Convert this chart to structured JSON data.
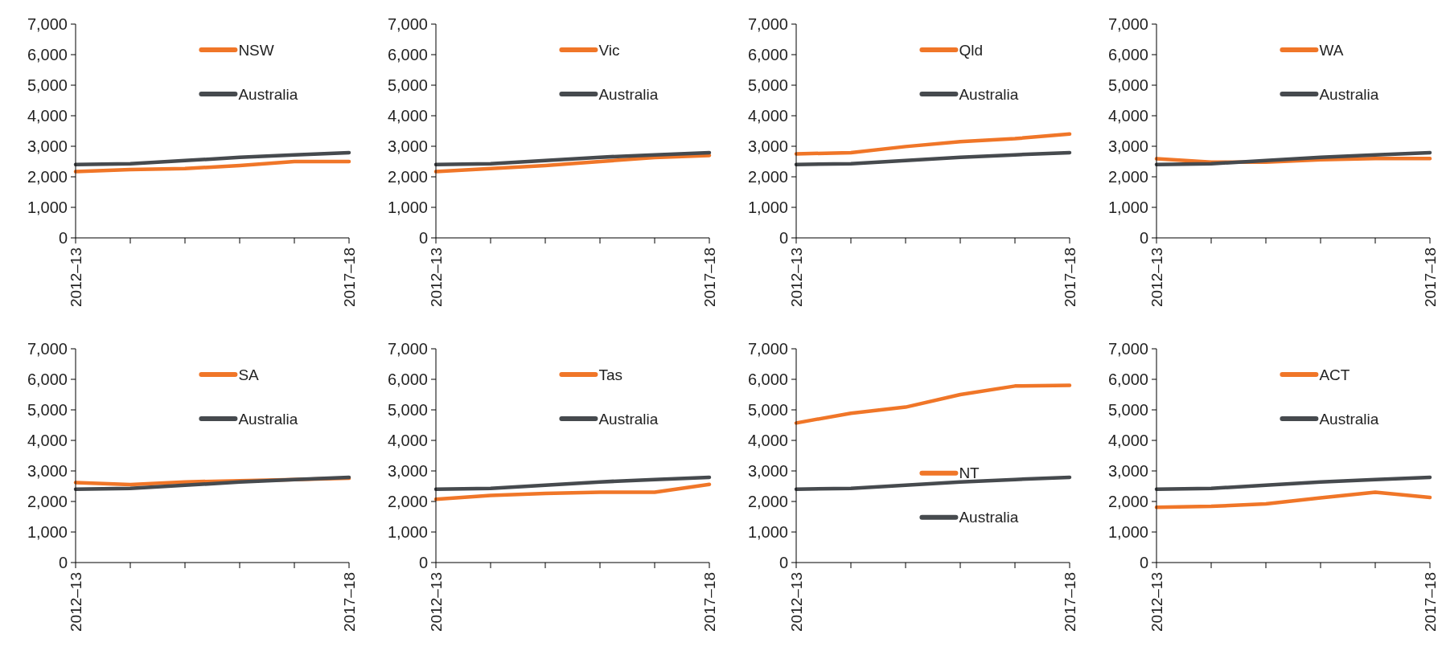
{
  "chart_data": [
    {
      "type": "line",
      "categories": [
        "2012–13",
        null,
        null,
        null,
        null,
        "2017–18"
      ],
      "ylim": [
        0,
        7000
      ],
      "yticks": [
        {
          "value": 0,
          "label": "0"
        },
        {
          "value": 1000,
          "label": "1,000"
        },
        {
          "value": 2000,
          "label": "2,000"
        },
        {
          "value": 3000,
          "label": "3,000"
        },
        {
          "value": 4000,
          "label": "4,000"
        },
        {
          "value": 5000,
          "label": "5,000"
        },
        {
          "value": 6000,
          "label": "6,000"
        },
        {
          "value": 7000,
          "label": "7,000"
        }
      ],
      "legend": "top right",
      "series": [
        {
          "name": "NSW",
          "color": "#f07628",
          "values": [
            2170,
            2240,
            2270,
            2370,
            2500,
            2500
          ]
        },
        {
          "name": "Australia",
          "color": "#464a4e",
          "values": [
            2400,
            2430,
            2530,
            2640,
            2720,
            2790
          ]
        }
      ]
    },
    {
      "type": "line",
      "categories": [
        "2012–13",
        null,
        null,
        null,
        null,
        "2017–18"
      ],
      "ylim": [
        0,
        7000
      ],
      "yticks": [
        {
          "value": 0,
          "label": "0"
        },
        {
          "value": 1000,
          "label": "1,000"
        },
        {
          "value": 2000,
          "label": "2,000"
        },
        {
          "value": 3000,
          "label": "3,000"
        },
        {
          "value": 4000,
          "label": "4,000"
        },
        {
          "value": 5000,
          "label": "5,000"
        },
        {
          "value": 6000,
          "label": "6,000"
        },
        {
          "value": 7000,
          "label": "7,000"
        }
      ],
      "legend": "top right",
      "series": [
        {
          "name": "Vic",
          "color": "#f07628",
          "values": [
            2170,
            2270,
            2370,
            2500,
            2630,
            2700
          ]
        },
        {
          "name": "Australia",
          "color": "#464a4e",
          "values": [
            2400,
            2430,
            2530,
            2640,
            2720,
            2790
          ]
        }
      ]
    },
    {
      "type": "line",
      "categories": [
        "2012–13",
        null,
        null,
        null,
        null,
        "2017–18"
      ],
      "ylim": [
        0,
        7000
      ],
      "yticks": [
        {
          "value": 0,
          "label": "0"
        },
        {
          "value": 1000,
          "label": "1,000"
        },
        {
          "value": 2000,
          "label": "2,000"
        },
        {
          "value": 3000,
          "label": "3,000"
        },
        {
          "value": 4000,
          "label": "4,000"
        },
        {
          "value": 5000,
          "label": "5,000"
        },
        {
          "value": 6000,
          "label": "6,000"
        },
        {
          "value": 7000,
          "label": "7,000"
        }
      ],
      "legend": "top right",
      "series": [
        {
          "name": "Qld",
          "color": "#f07628",
          "values": [
            2750,
            2790,
            2990,
            3150,
            3250,
            3400
          ]
        },
        {
          "name": "Australia",
          "color": "#464a4e",
          "values": [
            2400,
            2430,
            2530,
            2640,
            2720,
            2790
          ]
        }
      ]
    },
    {
      "type": "line",
      "categories": [
        "2012–13",
        null,
        null,
        null,
        null,
        "2017–18"
      ],
      "ylim": [
        0,
        7000
      ],
      "yticks": [
        {
          "value": 0,
          "label": "0"
        },
        {
          "value": 1000,
          "label": "1,000"
        },
        {
          "value": 2000,
          "label": "2,000"
        },
        {
          "value": 3000,
          "label": "3,000"
        },
        {
          "value": 4000,
          "label": "4,000"
        },
        {
          "value": 5000,
          "label": "5,000"
        },
        {
          "value": 6000,
          "label": "6,000"
        },
        {
          "value": 7000,
          "label": "7,000"
        }
      ],
      "legend": "top right",
      "series": [
        {
          "name": "WA",
          "color": "#f07628",
          "values": [
            2590,
            2480,
            2480,
            2560,
            2600,
            2600
          ]
        },
        {
          "name": "Australia",
          "color": "#464a4e",
          "values": [
            2400,
            2430,
            2530,
            2640,
            2720,
            2790
          ]
        }
      ]
    },
    {
      "type": "line",
      "categories": [
        "2012–13",
        null,
        null,
        null,
        null,
        "2017–18"
      ],
      "ylim": [
        0,
        7000
      ],
      "yticks": [
        {
          "value": 0,
          "label": "0"
        },
        {
          "value": 1000,
          "label": "1,000"
        },
        {
          "value": 2000,
          "label": "2,000"
        },
        {
          "value": 3000,
          "label": "3,000"
        },
        {
          "value": 4000,
          "label": "4,000"
        },
        {
          "value": 5000,
          "label": "5,000"
        },
        {
          "value": 6000,
          "label": "6,000"
        },
        {
          "value": 7000,
          "label": "7,000"
        }
      ],
      "legend": "top right",
      "series": [
        {
          "name": "SA",
          "color": "#f07628",
          "values": [
            2620,
            2550,
            2640,
            2680,
            2720,
            2760
          ]
        },
        {
          "name": "Australia",
          "color": "#464a4e",
          "values": [
            2400,
            2430,
            2530,
            2640,
            2720,
            2790
          ]
        }
      ]
    },
    {
      "type": "line",
      "categories": [
        "2012–13",
        null,
        null,
        null,
        null,
        "2017–18"
      ],
      "ylim": [
        0,
        7000
      ],
      "yticks": [
        {
          "value": 0,
          "label": "0"
        },
        {
          "value": 1000,
          "label": "1,000"
        },
        {
          "value": 2000,
          "label": "2,000"
        },
        {
          "value": 3000,
          "label": "3,000"
        },
        {
          "value": 4000,
          "label": "4,000"
        },
        {
          "value": 5000,
          "label": "5,000"
        },
        {
          "value": 6000,
          "label": "6,000"
        },
        {
          "value": 7000,
          "label": "7,000"
        }
      ],
      "legend": "top right",
      "series": [
        {
          "name": "Tas",
          "color": "#f07628",
          "values": [
            2070,
            2200,
            2260,
            2300,
            2300,
            2560
          ]
        },
        {
          "name": "Australia",
          "color": "#464a4e",
          "values": [
            2400,
            2430,
            2530,
            2640,
            2720,
            2790
          ]
        }
      ]
    },
    {
      "type": "line",
      "categories": [
        "2012–13",
        null,
        null,
        null,
        null,
        "2017–18"
      ],
      "ylim": [
        0,
        7000
      ],
      "yticks": [
        {
          "value": 0,
          "label": "0"
        },
        {
          "value": 1000,
          "label": "1,000"
        },
        {
          "value": 2000,
          "label": "2,000"
        },
        {
          "value": 3000,
          "label": "3,000"
        },
        {
          "value": 4000,
          "label": "4,000"
        },
        {
          "value": 5000,
          "label": "5,000"
        },
        {
          "value": 6000,
          "label": "6,000"
        },
        {
          "value": 7000,
          "label": "7,000"
        }
      ],
      "legend": "right",
      "series": [
        {
          "name": "NT",
          "color": "#f07628",
          "values": [
            4570,
            4890,
            5090,
            5500,
            5780,
            5800
          ]
        },
        {
          "name": "Australia",
          "color": "#464a4e",
          "values": [
            2400,
            2430,
            2530,
            2640,
            2720,
            2790
          ]
        }
      ]
    },
    {
      "type": "line",
      "categories": [
        "2012–13",
        null,
        null,
        null,
        null,
        "2017–18"
      ],
      "ylim": [
        0,
        7000
      ],
      "yticks": [
        {
          "value": 0,
          "label": "0"
        },
        {
          "value": 1000,
          "label": "1,000"
        },
        {
          "value": 2000,
          "label": "2,000"
        },
        {
          "value": 3000,
          "label": "3,000"
        },
        {
          "value": 4000,
          "label": "4,000"
        },
        {
          "value": 5000,
          "label": "5,000"
        },
        {
          "value": 6000,
          "label": "6,000"
        },
        {
          "value": 7000,
          "label": "7,000"
        }
      ],
      "legend": "top right",
      "series": [
        {
          "name": "ACT",
          "color": "#f07628",
          "values": [
            1810,
            1840,
            1920,
            2120,
            2300,
            2130
          ]
        },
        {
          "name": "Australia",
          "color": "#464a4e",
          "values": [
            2400,
            2430,
            2530,
            2640,
            2720,
            2790
          ]
        }
      ]
    }
  ]
}
